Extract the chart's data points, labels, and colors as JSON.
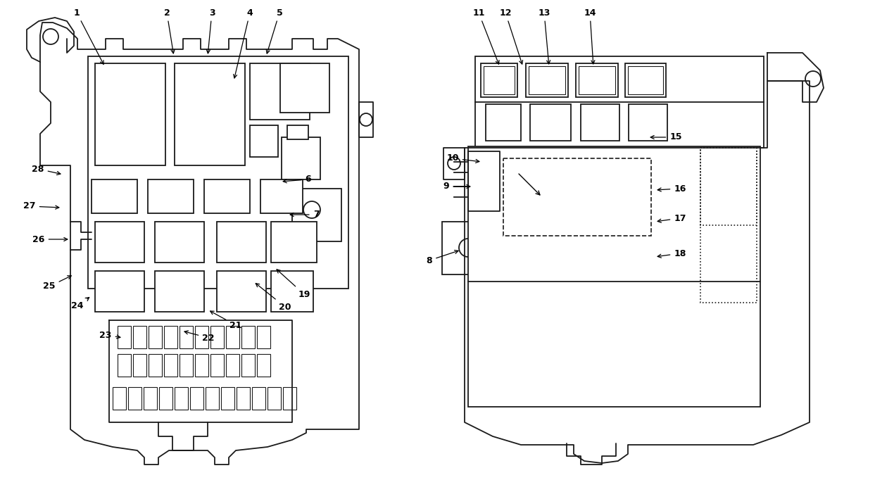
{
  "bg_color": "#ffffff",
  "line_color": "#1a1a1a",
  "fig_width": 12.7,
  "fig_height": 6.82,
  "dpi": 100,
  "lw": 1.3,
  "left_labels": [
    [
      "1",
      109,
      18,
      149,
      95
    ],
    [
      "2",
      237,
      18,
      247,
      80
    ],
    [
      "3",
      301,
      18,
      295,
      80
    ],
    [
      "4",
      355,
      18,
      332,
      115
    ],
    [
      "5",
      397,
      18,
      378,
      80
    ],
    [
      "6",
      438,
      255,
      398,
      258
    ],
    [
      "7",
      449,
      305,
      408,
      305
    ],
    [
      "19",
      432,
      418,
      390,
      380
    ],
    [
      "20",
      405,
      436,
      360,
      400
    ],
    [
      "21",
      335,
      462,
      295,
      440
    ],
    [
      "22",
      296,
      480,
      258,
      470
    ],
    [
      "23",
      150,
      476,
      175,
      480
    ],
    [
      "24",
      110,
      435,
      130,
      420
    ],
    [
      "25",
      70,
      407,
      105,
      390
    ],
    [
      "26",
      55,
      340,
      100,
      340
    ],
    [
      "27",
      42,
      293,
      88,
      295
    ],
    [
      "28",
      54,
      240,
      90,
      248
    ]
  ],
  "right_labels": [
    [
      "11",
      680,
      18,
      710,
      95
    ],
    [
      "12",
      718,
      18,
      743,
      95
    ],
    [
      "13",
      773,
      18,
      780,
      95
    ],
    [
      "14",
      838,
      18,
      843,
      95
    ],
    [
      "15",
      960,
      195,
      920,
      195
    ],
    [
      "10",
      643,
      225,
      685,
      230
    ],
    [
      "9",
      634,
      265,
      672,
      265
    ],
    [
      "16",
      966,
      268,
      930,
      270
    ],
    [
      "17",
      966,
      310,
      930,
      315
    ],
    [
      "18",
      966,
      360,
      930,
      365
    ],
    [
      "8",
      610,
      370,
      655,
      355
    ]
  ]
}
